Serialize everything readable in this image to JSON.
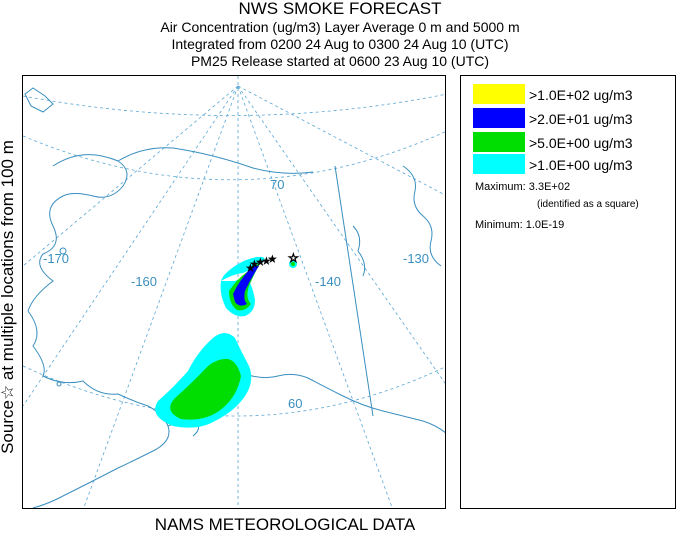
{
  "title": {
    "main": "NWS SMOKE FORECAST",
    "line2": "Air Concentration (ug/m3) Layer Average    0 m and  5000 m",
    "line3": "Integrated from 0200 24 Aug to 0300 24 Aug 10 (UTC)",
    "line4": "PM25 Release started at 0600 23 Aug 10 (UTC)"
  },
  "side_label": "Source☆ at multiple locations  from  100 m",
  "footer": "NAMS METEOROLOGICAL DATA",
  "map": {
    "grid_labels": {
      "lon_170": "-170",
      "lon_160": "-160",
      "lon_140": "-140",
      "lon_130": "-130",
      "lat_70": "70",
      "lat_60": "60"
    },
    "colors": {
      "land_line": "#3a8fbf",
      "grid_line": "#5aa6d4",
      "grid_label": "#3a8fbf"
    },
    "source_marker": "star-icon"
  },
  "legend": {
    "items": [
      {
        "label": ">1.0E+02 ug/m3",
        "color": "#ffff00"
      },
      {
        "label": ">2.0E+01 ug/m3",
        "color": "#0000ff"
      },
      {
        "label": ">5.0E+00 ug/m3",
        "color": "#00dd00"
      },
      {
        "label": ">1.0E+00 ug/m3",
        "color": "#00ffff"
      }
    ],
    "maximum_label": "Maximum: 3.3E+02",
    "maximum_note": "(identified as a square)",
    "minimum_label": "Minimum: 1.0E-19"
  }
}
